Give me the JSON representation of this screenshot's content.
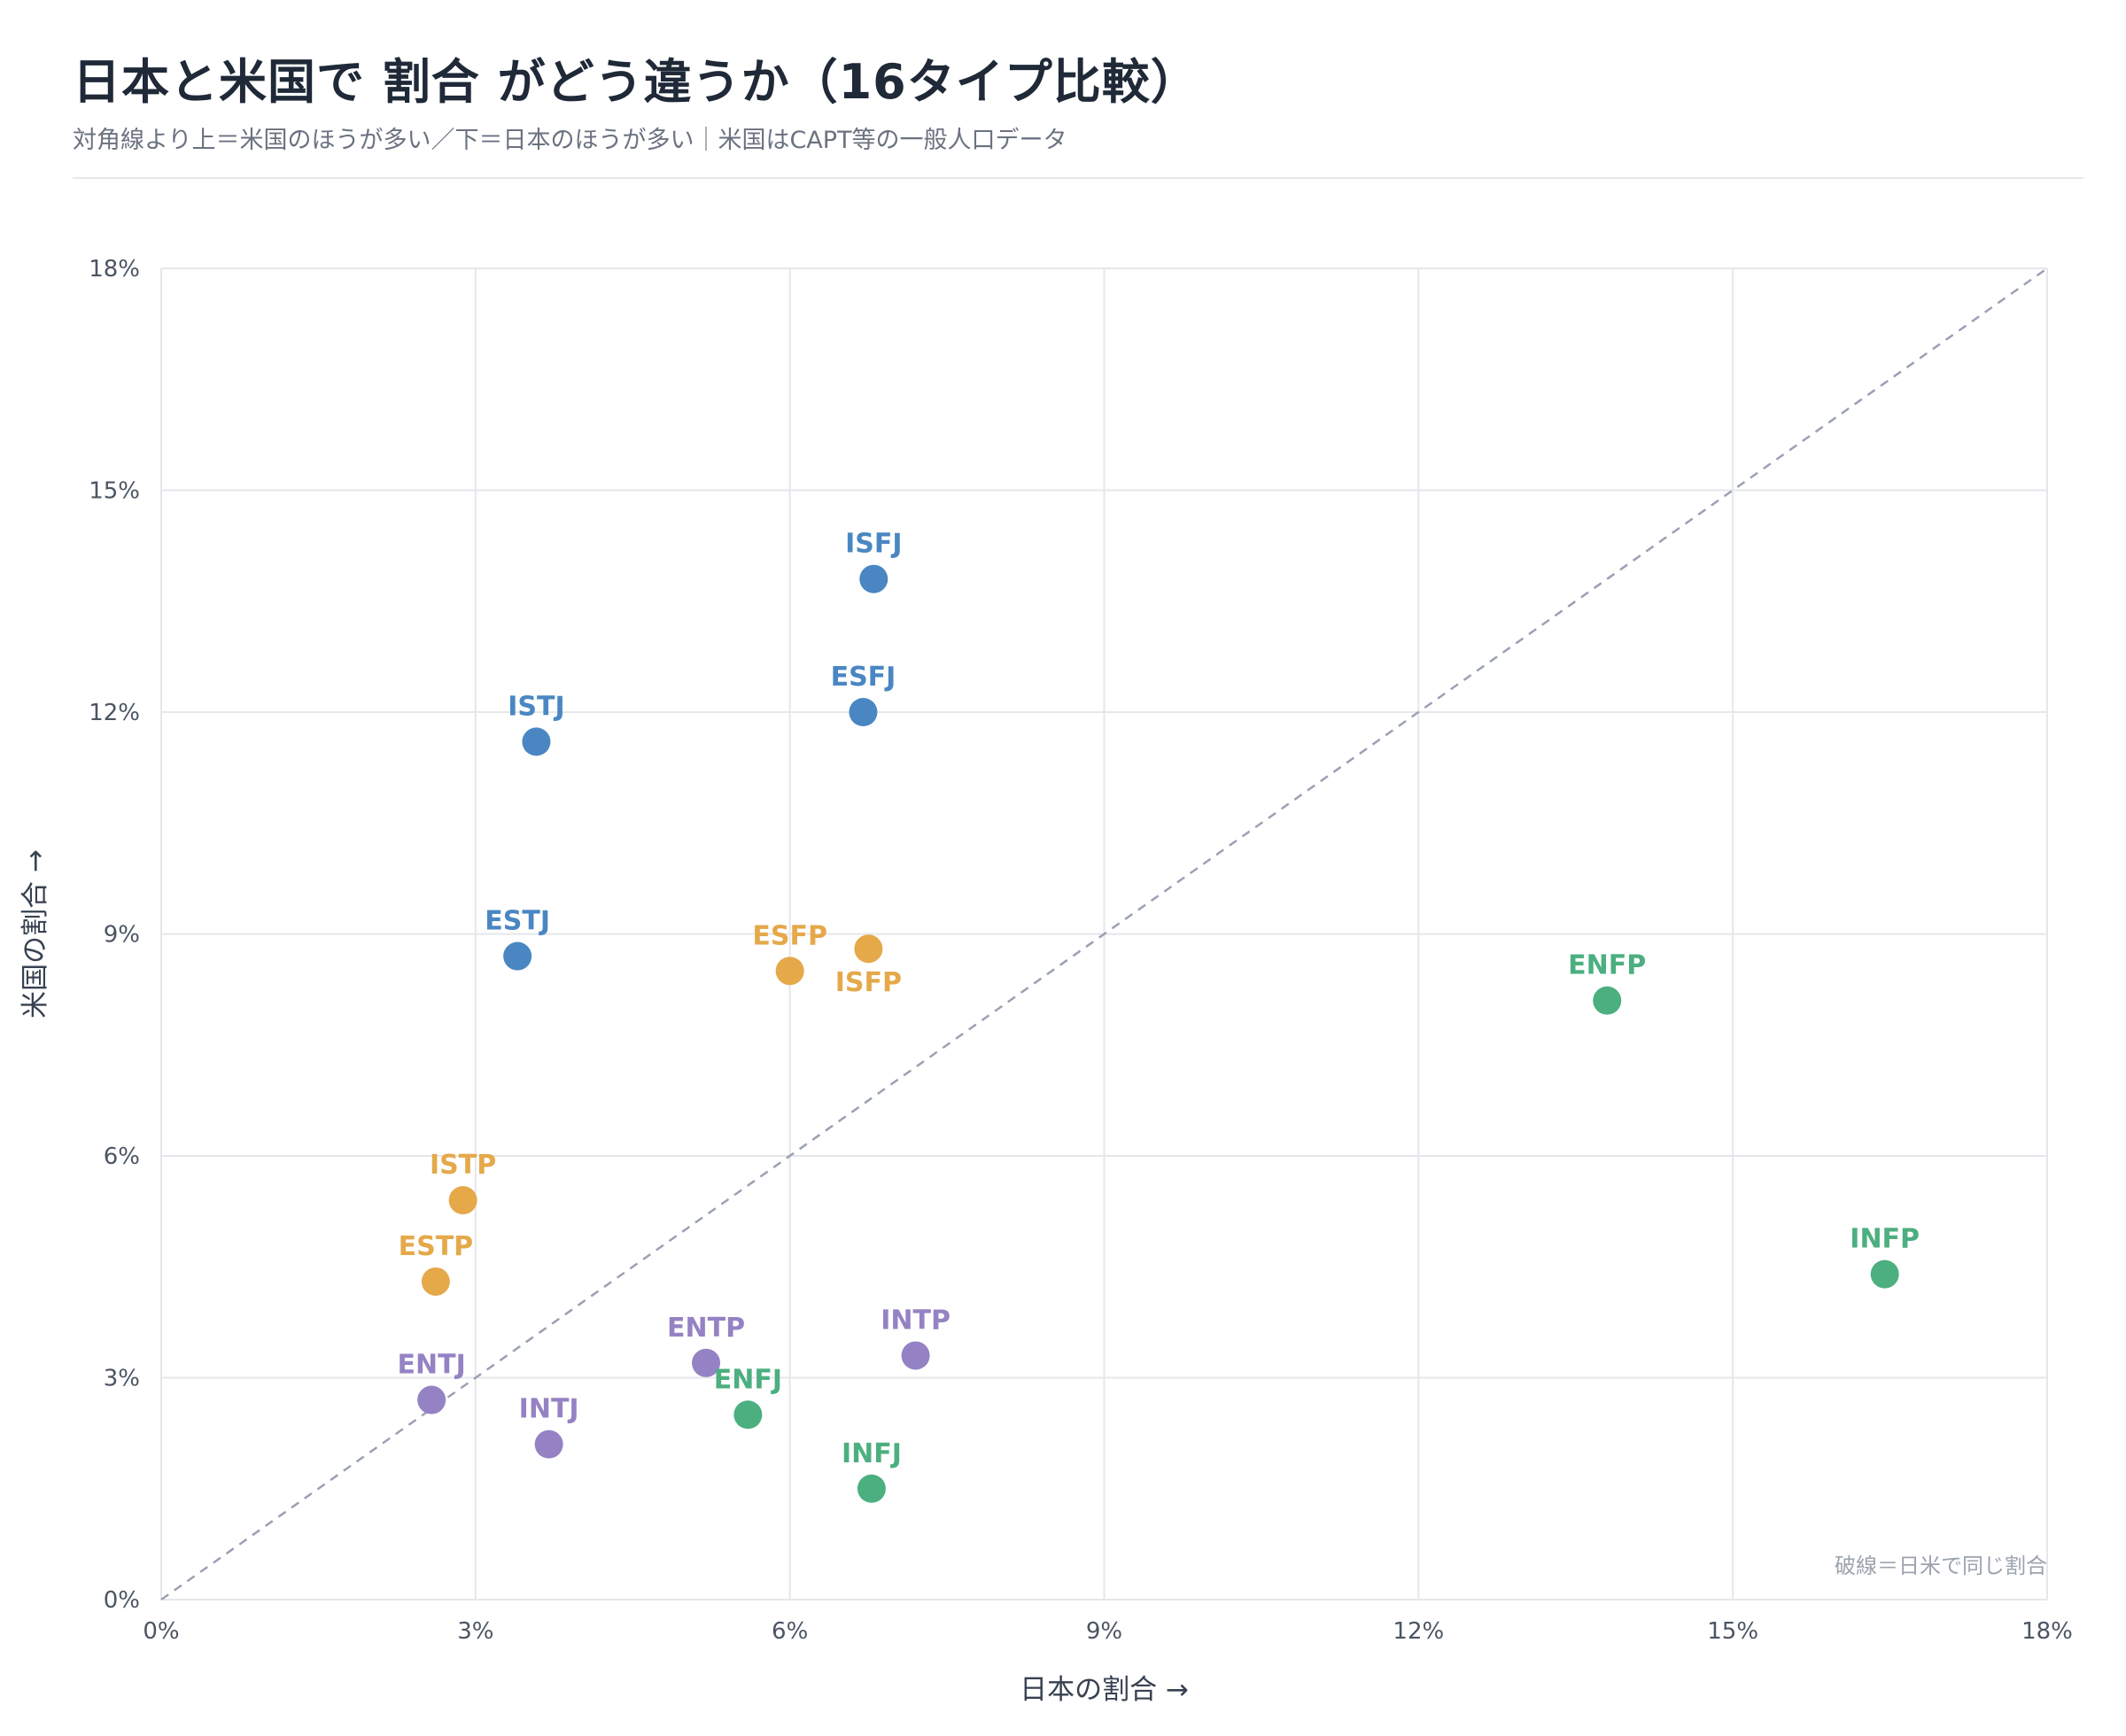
{
  "header": {
    "title": "日本と米国で 割合 がどう違うか（16タイプ比較）",
    "subtitle": "対角線より上＝米国のほうが多い／下＝日本のほうが多い｜米国はCAPT等の一般人口データ"
  },
  "colors": {
    "SJ": "#4a87c2",
    "SP": "#e5a94a",
    "NT": "#9582c4",
    "NF": "#4caf80",
    "grid": "#e5e7eb",
    "diagonal": "#9aa1b3"
  },
  "chart_data": {
    "type": "scatter",
    "xlabel": "日本の割合 →",
    "ylabel": "米国の割合 →",
    "xlim": [
      0,
      18
    ],
    "ylim": [
      0,
      18
    ],
    "x_ticks": [
      0,
      3,
      6,
      9,
      12,
      15,
      18
    ],
    "y_ticks": [
      0,
      3,
      6,
      9,
      12,
      15,
      18
    ],
    "x_tick_labels": [
      "0%",
      "3%",
      "6%",
      "9%",
      "12%",
      "15%",
      "18%"
    ],
    "y_tick_labels": [
      "0%",
      "3%",
      "6%",
      "9%",
      "12%",
      "15%",
      "18%"
    ],
    "grid": true,
    "reference_line": "y = x",
    "note": "破線＝日米で同じ割合",
    "points": [
      {
        "label": "ISFJ",
        "group": "SJ",
        "x": 6.8,
        "y": 13.8,
        "label_pos": "above"
      },
      {
        "label": "ESFJ",
        "group": "SJ",
        "x": 6.7,
        "y": 12.0,
        "label_pos": "above"
      },
      {
        "label": "ISTJ",
        "group": "SJ",
        "x": 3.58,
        "y": 11.6,
        "label_pos": "above"
      },
      {
        "label": "ESTJ",
        "group": "SJ",
        "x": 3.4,
        "y": 8.7,
        "label_pos": "above"
      },
      {
        "label": "ESFP",
        "group": "SP",
        "x": 6.0,
        "y": 8.5,
        "label_pos": "above"
      },
      {
        "label": "ISFP",
        "group": "SP",
        "x": 6.75,
        "y": 8.8,
        "label_pos": "below"
      },
      {
        "label": "ISTP",
        "group": "SP",
        "x": 2.88,
        "y": 5.4,
        "label_pos": "above"
      },
      {
        "label": "ESTP",
        "group": "SP",
        "x": 2.62,
        "y": 4.3,
        "label_pos": "above"
      },
      {
        "label": "ENTJ",
        "group": "NT",
        "x": 2.58,
        "y": 2.7,
        "label_pos": "above"
      },
      {
        "label": "INTJ",
        "group": "NT",
        "x": 3.7,
        "y": 2.1,
        "label_pos": "above"
      },
      {
        "label": "ENTP",
        "group": "NT",
        "x": 5.2,
        "y": 3.2,
        "label_pos": "above"
      },
      {
        "label": "INTP",
        "group": "NT",
        "x": 7.2,
        "y": 3.3,
        "label_pos": "above"
      },
      {
        "label": "ENFJ",
        "group": "NF",
        "x": 5.6,
        "y": 2.5,
        "label_pos": "above"
      },
      {
        "label": "INFJ",
        "group": "NF",
        "x": 6.78,
        "y": 1.5,
        "label_pos": "above"
      },
      {
        "label": "ENFP",
        "group": "NF",
        "x": 13.8,
        "y": 8.1,
        "label_pos": "above"
      },
      {
        "label": "INFP",
        "group": "NF",
        "x": 16.45,
        "y": 4.4,
        "label_pos": "above"
      }
    ]
  }
}
